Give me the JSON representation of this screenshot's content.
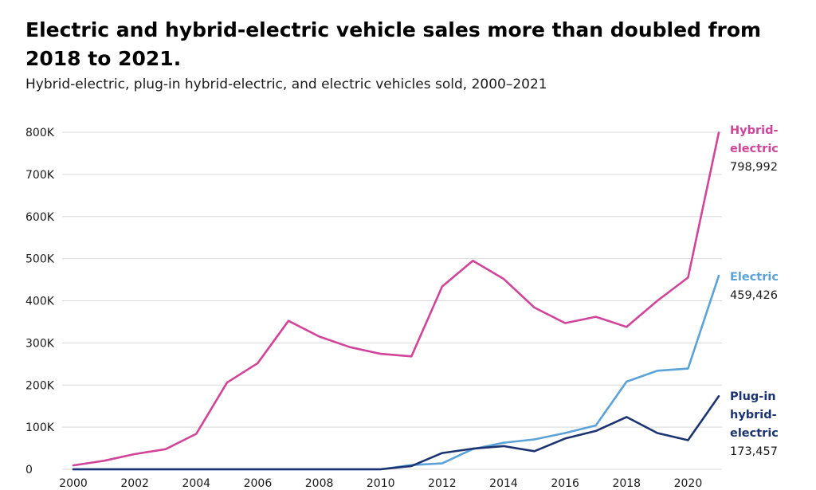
{
  "header": {
    "title": "Electric and hybrid-electric vehicle sales more than doubled from 2018 to 2021.",
    "subtitle": "Hybrid-electric, plug-in hybrid-electric, and electric vehicles sold, 2000–2021"
  },
  "colors": {
    "hybrid": "#d1449a",
    "electric": "#5aa2d8",
    "plugin": "#1b3370"
  },
  "chart_data": {
    "type": "line",
    "title": "Electric and hybrid-electric vehicle sales more than doubled from 2018 to 2021.",
    "subtitle": "Hybrid-electric, plug-in hybrid-electric, and electric vehicles sold, 2000–2021",
    "x": [
      2000,
      2001,
      2002,
      2003,
      2004,
      2005,
      2006,
      2007,
      2008,
      2009,
      2010,
      2011,
      2012,
      2013,
      2014,
      2015,
      2016,
      2017,
      2018,
      2019,
      2020,
      2021
    ],
    "xticks": [
      "2000",
      "2002",
      "2004",
      "2006",
      "2008",
      "2010",
      "2012",
      "2014",
      "2016",
      "2018",
      "2020"
    ],
    "ylim": [
      0,
      800000
    ],
    "yticks": [
      0,
      100000,
      200000,
      300000,
      400000,
      500000,
      600000,
      700000,
      800000
    ],
    "ytick_labels": [
      "0",
      "100K",
      "200K",
      "300K",
      "400K",
      "500K",
      "600K",
      "700K",
      "800K"
    ],
    "grid": "horizontal",
    "legend": "direct labels at line ends (right)",
    "series": [
      {
        "name": "Hybrid-electric",
        "label_lines": [
          "Hybrid-",
          "electric"
        ],
        "end_label": "798,992",
        "color": "#d1449a",
        "values": [
          9350,
          20282,
          36035,
          47600,
          84199,
          205749,
          251864,
          352274,
          315000,
          290000,
          274000,
          268000,
          434000,
          495000,
          452000,
          384000,
          347000,
          362000,
          338000,
          400000,
          455000,
          798992
        ]
      },
      {
        "name": "Electric",
        "label_lines": [
          "Electric"
        ],
        "end_label": "459,426",
        "color": "#5aa2d8",
        "values": [
          0,
          0,
          0,
          0,
          0,
          0,
          0,
          0,
          0,
          0,
          0,
          10000,
          14000,
          48000,
          63000,
          71000,
          86000,
          104000,
          208000,
          234000,
          239000,
          459426
        ]
      },
      {
        "name": "Plug-in hybrid-electric",
        "label_lines": [
          "Plug-in",
          "hybrid-",
          "electric"
        ],
        "end_label": "173,457",
        "color": "#1b3370",
        "values": [
          0,
          0,
          0,
          0,
          0,
          0,
          0,
          0,
          0,
          0,
          0,
          7700,
          38500,
          49000,
          55000,
          43000,
          73000,
          91000,
          124000,
          86000,
          69000,
          173457
        ]
      }
    ]
  }
}
